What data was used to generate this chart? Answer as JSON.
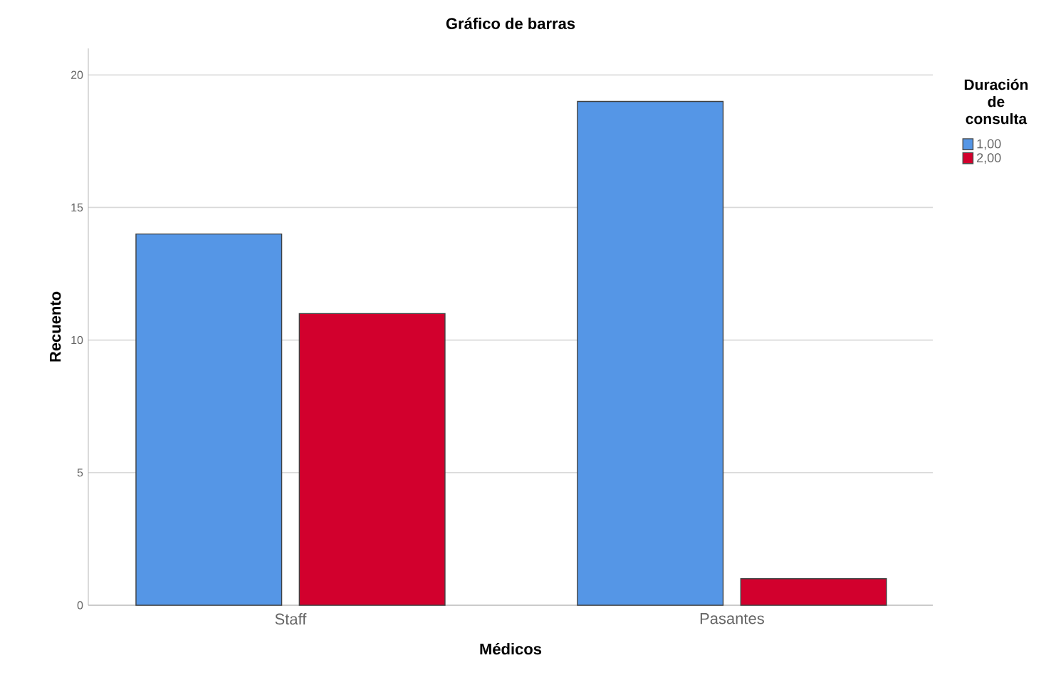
{
  "chart_data": {
    "type": "bar",
    "title": "Gráfico de barras",
    "xlabel": "Médicos",
    "ylabel": "Recuento",
    "legend_title": "Duración de consulta",
    "categories": [
      "Staff",
      "Pasantes"
    ],
    "series": [
      {
        "name": "1,00",
        "color": "#5596e6",
        "values": [
          14,
          19
        ]
      },
      {
        "name": "2,00",
        "color": "#d2002d",
        "values": [
          11,
          1
        ]
      }
    ],
    "ylim": [
      0,
      21
    ],
    "yticks": [
      0,
      5,
      10,
      15,
      20
    ],
    "grid": "y",
    "legend": "top right"
  }
}
